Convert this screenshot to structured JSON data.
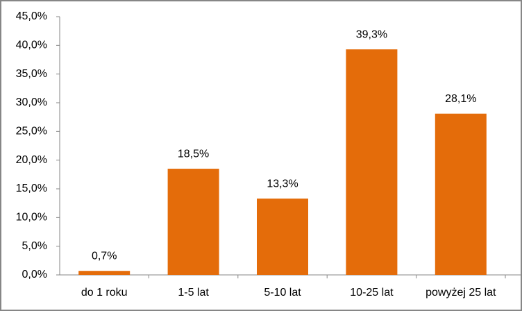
{
  "chart_data": {
    "type": "bar",
    "categories": [
      "do 1 roku",
      "1-5 lat",
      "5-10 lat",
      "10-25 lat",
      "powyżej 25 lat"
    ],
    "values": [
      0.7,
      18.5,
      13.3,
      39.3,
      28.1
    ],
    "value_labels": [
      "0,7%",
      "18,5%",
      "13,3%",
      "39,3%",
      "28,1%"
    ],
    "color": "#e46c0a",
    "ylim": [
      0,
      45
    ],
    "yticks": [
      {
        "value": 0,
        "label": "0,0%"
      },
      {
        "value": 5,
        "label": "5,0%"
      },
      {
        "value": 10,
        "label": "10,0%"
      },
      {
        "value": 15,
        "label": "15,0%"
      },
      {
        "value": 20,
        "label": "20,0%"
      },
      {
        "value": 25,
        "label": "25,0%"
      },
      {
        "value": 30,
        "label": "30,0%"
      },
      {
        "value": 35,
        "label": "35,0%"
      },
      {
        "value": 40,
        "label": "40,0%"
      },
      {
        "value": 45,
        "label": "45,0%"
      }
    ],
    "grid": false
  }
}
